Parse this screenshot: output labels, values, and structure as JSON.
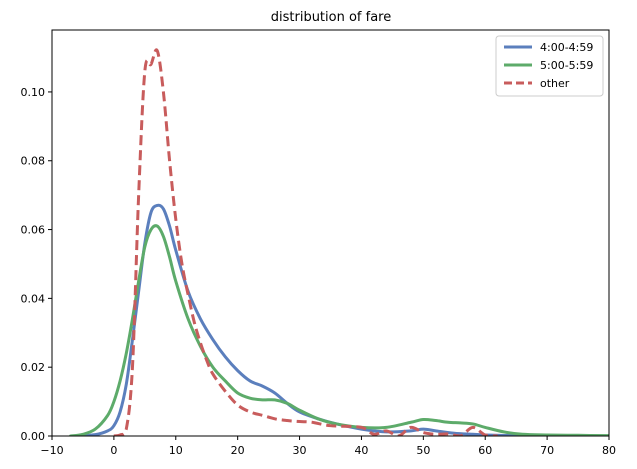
{
  "chart_data": {
    "type": "line",
    "title": "distribution of fare",
    "xlabel": "",
    "ylabel": "",
    "xlim": [
      -10,
      80
    ],
    "ylim": [
      0,
      0.118
    ],
    "xticks": [
      -10,
      0,
      10,
      20,
      30,
      40,
      50,
      60,
      70,
      80
    ],
    "yticks": [
      0.0,
      0.02,
      0.04,
      0.06,
      0.08,
      0.1
    ],
    "ytick_labels": [
      "0.00",
      "0.02",
      "0.04",
      "0.06",
      "0.08",
      "0.10"
    ],
    "grid": false,
    "legend_position": "top-right",
    "series": [
      {
        "name": "4:00-4:59",
        "color": "#5b7fbd",
        "style": "solid",
        "x": [
          -6,
          -3,
          -1,
          0,
          1,
          2,
          3,
          4,
          5,
          6,
          7,
          8,
          9,
          10,
          12,
          14,
          16,
          18,
          20,
          22,
          24,
          26,
          28,
          30,
          33,
          36,
          40,
          44,
          48,
          50,
          52,
          55,
          58,
          60,
          65,
          70,
          75,
          80
        ],
        "y": [
          0.0,
          0.0004,
          0.0015,
          0.003,
          0.007,
          0.015,
          0.028,
          0.042,
          0.056,
          0.065,
          0.067,
          0.066,
          0.061,
          0.054,
          0.042,
          0.034,
          0.028,
          0.023,
          0.019,
          0.016,
          0.0145,
          0.0125,
          0.0095,
          0.007,
          0.005,
          0.0035,
          0.002,
          0.0012,
          0.0015,
          0.002,
          0.0015,
          0.0008,
          0.0005,
          0.0003,
          0.0001,
          0.0,
          0.0,
          0.0
        ]
      },
      {
        "name": "5:00-5:59",
        "color": "#5dab6a",
        "style": "solid",
        "x": [
          -7,
          -5,
          -3,
          -1,
          0,
          1,
          2,
          3,
          4,
          5,
          6,
          7,
          8,
          9,
          10,
          12,
          14,
          16,
          18,
          20,
          22,
          24,
          26,
          28,
          30,
          33,
          36,
          40,
          44,
          48,
          50,
          52,
          54,
          56,
          58,
          60,
          63,
          66,
          70,
          75,
          80
        ],
        "y": [
          0.0,
          0.0005,
          0.002,
          0.006,
          0.01,
          0.016,
          0.024,
          0.034,
          0.045,
          0.055,
          0.06,
          0.061,
          0.058,
          0.052,
          0.045,
          0.034,
          0.026,
          0.02,
          0.016,
          0.0125,
          0.011,
          0.0105,
          0.0105,
          0.0095,
          0.0075,
          0.005,
          0.0035,
          0.0025,
          0.0025,
          0.004,
          0.0048,
          0.0045,
          0.004,
          0.0038,
          0.0035,
          0.0025,
          0.0012,
          0.0005,
          0.0003,
          0.0002,
          0.0001
        ]
      },
      {
        "name": "other",
        "color": "#c85c5c",
        "style": "dashed",
        "x": [
          0,
          1,
          2,
          3,
          4,
          5,
          6,
          7,
          8,
          9,
          10,
          11,
          12,
          13,
          14,
          15,
          16,
          18,
          20,
          22,
          24,
          26,
          28,
          30,
          32,
          35,
          40,
          42,
          44,
          46,
          48,
          50,
          52,
          54,
          56,
          58,
          60,
          62
        ],
        "y": [
          0.0,
          0.0003,
          0.002,
          0.02,
          0.07,
          0.106,
          0.108,
          0.112,
          0.1,
          0.08,
          0.063,
          0.05,
          0.041,
          0.033,
          0.027,
          0.022,
          0.018,
          0.013,
          0.009,
          0.007,
          0.006,
          0.005,
          0.0045,
          0.0042,
          0.004,
          0.003,
          0.0025,
          0.0005,
          0.0015,
          0.0,
          0.0025,
          0.001,
          0.0005,
          0.0006,
          0.0,
          0.0025,
          0.0003,
          0.0
        ]
      }
    ]
  }
}
